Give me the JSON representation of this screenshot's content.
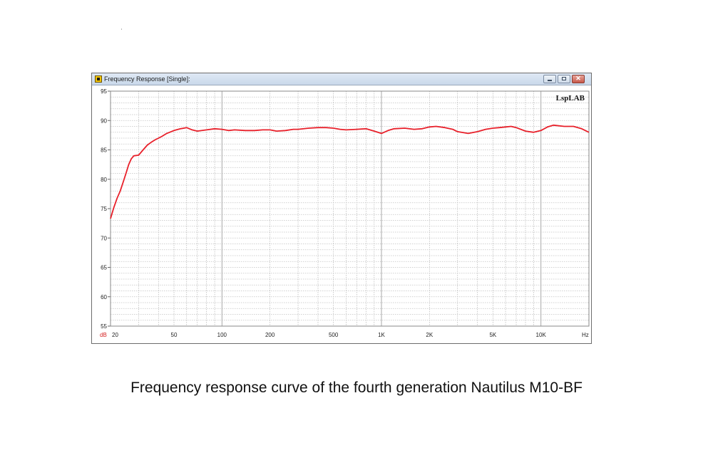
{
  "window": {
    "title": "Frequency Response [Single]:",
    "app_icon": "speaker-app-icon",
    "controls": [
      "minimize-icon",
      "maximize-icon",
      "close-icon"
    ],
    "brand_label": "LspLAB"
  },
  "caption": "Frequency response curve of the fourth generation Nautilus M10-BF",
  "chart_data": {
    "type": "line",
    "title": "",
    "xlabel": "Hz",
    "ylabel": "dB",
    "x_scale": "log",
    "xlim": [
      20,
      20000
    ],
    "ylim": [
      55,
      95
    ],
    "grid": true,
    "x_ticks": [
      {
        "value": 20,
        "label": "20"
      },
      {
        "value": 50,
        "label": "50"
      },
      {
        "value": 100,
        "label": "100"
      },
      {
        "value": 200,
        "label": "200"
      },
      {
        "value": 500,
        "label": "500"
      },
      {
        "value": 1000,
        "label": "1K"
      },
      {
        "value": 2000,
        "label": "2K"
      },
      {
        "value": 5000,
        "label": "5K"
      },
      {
        "value": 10000,
        "label": "10K"
      }
    ],
    "y_ticks": [
      55,
      60,
      65,
      70,
      75,
      80,
      85,
      90,
      95
    ],
    "line_color": "#e8202a",
    "series": [
      {
        "name": "",
        "x": [
          20,
          21,
          22,
          23,
          24,
          25,
          26,
          27,
          28,
          30,
          32,
          34,
          36,
          38,
          40,
          42,
          45,
          48,
          50,
          55,
          60,
          65,
          70,
          80,
          90,
          100,
          110,
          120,
          140,
          160,
          180,
          200,
          220,
          250,
          280,
          300,
          350,
          400,
          450,
          500,
          550,
          600,
          700,
          800,
          900,
          1000,
          1100,
          1200,
          1400,
          1600,
          1800,
          2000,
          2200,
          2500,
          2800,
          3000,
          3500,
          4000,
          4500,
          5000,
          5500,
          6000,
          6500,
          7000,
          8000,
          9000,
          10000,
          11000,
          12000,
          14000,
          16000,
          18000,
          20000
        ],
        "y": [
          73.3,
          75.2,
          76.8,
          78.0,
          79.5,
          81.0,
          82.5,
          83.5,
          84.0,
          84.1,
          85.0,
          85.8,
          86.3,
          86.7,
          87.0,
          87.3,
          87.8,
          88.1,
          88.3,
          88.6,
          88.8,
          88.4,
          88.2,
          88.4,
          88.6,
          88.5,
          88.3,
          88.4,
          88.3,
          88.3,
          88.4,
          88.4,
          88.2,
          88.3,
          88.5,
          88.5,
          88.7,
          88.8,
          88.8,
          88.7,
          88.5,
          88.4,
          88.5,
          88.6,
          88.2,
          87.8,
          88.3,
          88.6,
          88.7,
          88.5,
          88.6,
          88.9,
          89.0,
          88.8,
          88.5,
          88.1,
          87.8,
          88.1,
          88.5,
          88.7,
          88.8,
          88.9,
          89.0,
          88.8,
          88.2,
          88.0,
          88.3,
          88.9,
          89.2,
          89.0,
          89.0,
          88.6,
          88.0
        ]
      }
    ]
  }
}
